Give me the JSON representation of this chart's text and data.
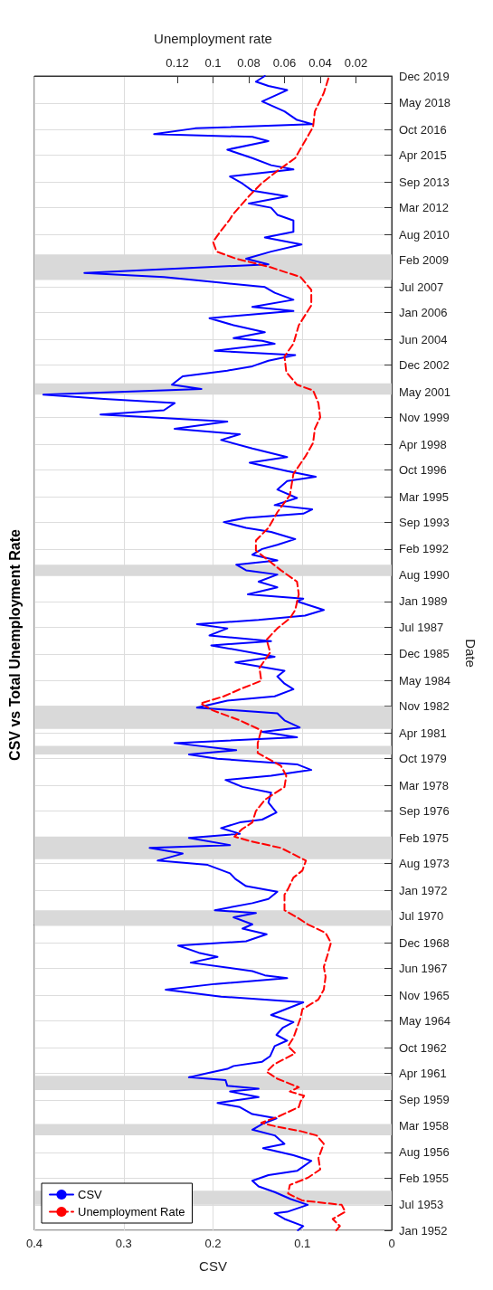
{
  "chart_data": {
    "type": "line",
    "orientation": "horizontal",
    "title": "CSV vs Total Unemployment Rate",
    "ylabel": "Date",
    "xlabel": "CSV",
    "x2label": "Unemployment rate",
    "ylim": [
      "1952-01",
      "2019-12"
    ],
    "yticks": [
      {
        "value": "1952-01",
        "label": "Jan 1952"
      },
      {
        "value": "1953-07",
        "label": "Jul 1953"
      },
      {
        "value": "1955-02",
        "label": "Feb 1955"
      },
      {
        "value": "1956-08",
        "label": "Aug 1956"
      },
      {
        "value": "1958-03",
        "label": "Mar 1958"
      },
      {
        "value": "1959-09",
        "label": "Sep 1959"
      },
      {
        "value": "1961-04",
        "label": "Apr 1961"
      },
      {
        "value": "1962-10",
        "label": "Oct 1962"
      },
      {
        "value": "1964-05",
        "label": "May 1964"
      },
      {
        "value": "1965-11",
        "label": "Nov 1965"
      },
      {
        "value": "1967-06",
        "label": "Jun 1967"
      },
      {
        "value": "1968-12",
        "label": "Dec 1968"
      },
      {
        "value": "1970-07",
        "label": "Jul 1970"
      },
      {
        "value": "1972-01",
        "label": "Jan 1972"
      },
      {
        "value": "1973-08",
        "label": "Aug 1973"
      },
      {
        "value": "1975-02",
        "label": "Feb 1975"
      },
      {
        "value": "1976-09",
        "label": "Sep 1976"
      },
      {
        "value": "1978-03",
        "label": "Mar 1978"
      },
      {
        "value": "1979-10",
        "label": "Oct 1979"
      },
      {
        "value": "1981-04",
        "label": "Apr 1981"
      },
      {
        "value": "1982-11",
        "label": "Nov 1982"
      },
      {
        "value": "1984-05",
        "label": "May 1984"
      },
      {
        "value": "1985-12",
        "label": "Dec 1985"
      },
      {
        "value": "1987-07",
        "label": "Jul 1987"
      },
      {
        "value": "1989-01",
        "label": "Jan 1989"
      },
      {
        "value": "1990-08",
        "label": "Aug 1990"
      },
      {
        "value": "1992-02",
        "label": "Feb 1992"
      },
      {
        "value": "1993-09",
        "label": "Sep 1993"
      },
      {
        "value": "1995-03",
        "label": "Mar 1995"
      },
      {
        "value": "1996-10",
        "label": "Oct 1996"
      },
      {
        "value": "1998-04",
        "label": "Apr 1998"
      },
      {
        "value": "1999-11",
        "label": "Nov 1999"
      },
      {
        "value": "2001-05",
        "label": "May 2001"
      },
      {
        "value": "2002-12",
        "label": "Dec 2002"
      },
      {
        "value": "2004-06",
        "label": "Jun 2004"
      },
      {
        "value": "2006-01",
        "label": "Jan 2006"
      },
      {
        "value": "2007-07",
        "label": "Jul 2007"
      },
      {
        "value": "2009-02",
        "label": "Feb 2009"
      },
      {
        "value": "2010-08",
        "label": "Aug 2010"
      },
      {
        "value": "2012-03",
        "label": "Mar 2012"
      },
      {
        "value": "2013-09",
        "label": "Sep 2013"
      },
      {
        "value": "2015-04",
        "label": "Apr 2015"
      },
      {
        "value": "2016-10",
        "label": "Oct 2016"
      },
      {
        "value": "2018-05",
        "label": "May 2018"
      },
      {
        "value": "2019-12",
        "label": "Dec 2019"
      }
    ],
    "xlim": [
      0.4,
      0
    ],
    "xticks": [
      0.4,
      0.3,
      0.2,
      0.1,
      0
    ],
    "x2lim": [
      0.2,
      0
    ],
    "x2ticks": [
      0.12,
      0.1,
      0.08,
      0.06,
      0.04,
      0.02
    ],
    "grid": true,
    "legend": "bottom left",
    "bands": [
      {
        "axis": "y",
        "from": "1953-07",
        "to": "1954-05",
        "color": "#d9d9d9"
      },
      {
        "axis": "y",
        "from": "1957-08",
        "to": "1958-04",
        "color": "#d9d9d9"
      },
      {
        "axis": "y",
        "from": "1960-04",
        "to": "1961-02",
        "color": "#d9d9d9"
      },
      {
        "axis": "y",
        "from": "1969-12",
        "to": "1970-11",
        "color": "#d9d9d9"
      },
      {
        "axis": "y",
        "from": "1973-11",
        "to": "1975-03",
        "color": "#d9d9d9"
      },
      {
        "axis": "y",
        "from": "1980-01",
        "to": "1980-07",
        "color": "#d9d9d9"
      },
      {
        "axis": "y",
        "from": "1981-07",
        "to": "1982-11",
        "color": "#d9d9d9"
      },
      {
        "axis": "y",
        "from": "1990-07",
        "to": "1991-03",
        "color": "#d9d9d9"
      },
      {
        "axis": "y",
        "from": "2001-03",
        "to": "2001-11",
        "color": "#d9d9d9"
      },
      {
        "axis": "y",
        "from": "2007-12",
        "to": "2009-06",
        "color": "#d9d9d9"
      }
    ],
    "series": [
      {
        "name": "CSV",
        "color": "#0000ff",
        "line_style": "solid",
        "x": [
          "1952-01",
          "1952-04",
          "1952-09",
          "1953-01",
          "1953-02",
          "1953-07",
          "1953-11",
          "1954-04",
          "1954-08",
          "1954-12",
          "1955-04",
          "1955-07",
          "1956-02",
          "1956-06",
          "1956-11",
          "1957-02",
          "1957-08",
          "1957-12",
          "1958-04",
          "1958-08",
          "1958-11",
          "1959-04",
          "1959-07",
          "1959-11",
          "1960-03",
          "1960-05",
          "1960-07",
          "1960-11",
          "1961-01",
          "1961-04",
          "1961-07",
          "1961-09",
          "1961-12",
          "1962-04",
          "1962-11",
          "1963-03",
          "1963-07",
          "1963-12",
          "1964-04",
          "1964-09",
          "1965-01",
          "1965-06",
          "1965-10",
          "1966-03",
          "1966-07",
          "1966-11",
          "1967-01",
          "1967-04",
          "1967-10",
          "1968-02",
          "1968-05",
          "1968-10",
          "1969-01",
          "1969-06",
          "1969-10",
          "1970-01",
          "1970-06",
          "1970-09",
          "1970-11",
          "1971-04",
          "1971-07",
          "1971-12",
          "1972-04",
          "1972-09",
          "1973-01",
          "1973-07",
          "1973-10",
          "1974-03",
          "1974-07",
          "1974-09",
          "1975-02",
          "1975-05",
          "1975-09",
          "1976-01",
          "1976-03",
          "1976-08",
          "1977-03",
          "1977-10",
          "1978-02",
          "1978-07",
          "1978-10",
          "1979-02",
          "1979-06",
          "1979-10",
          "1980-01",
          "1980-04",
          "1980-09",
          "1981-01",
          "1981-05",
          "1981-08",
          "1982-01",
          "1982-06",
          "1982-10",
          "1983-03",
          "1983-06",
          "1983-11",
          "1984-03",
          "1984-08",
          "1984-12",
          "1985-06",
          "1985-10",
          "1986-06",
          "1986-09",
          "1987-01",
          "1987-06",
          "1987-09",
          "1987-12",
          "1988-03",
          "1988-07",
          "1989-01",
          "1989-03",
          "1989-06",
          "1989-11",
          "1990-03",
          "1990-08",
          "1990-11",
          "1991-03",
          "1991-06",
          "1991-10",
          "1992-02",
          "1992-05",
          "1992-09",
          "1993-02",
          "1993-05",
          "1993-09",
          "1993-12",
          "1994-03",
          "1994-06",
          "1994-09",
          "1995-02",
          "1995-08",
          "1996-02",
          "1996-05",
          "1996-09",
          "1997-03",
          "1997-07",
          "1998-01",
          "1998-07",
          "1998-11",
          "1999-03",
          "1999-08",
          "2000-01",
          "2000-04",
          "2000-09",
          "2000-12",
          "2001-03",
          "2001-07",
          "2001-10",
          "2002-04",
          "2002-08",
          "2002-11",
          "2003-03",
          "2003-07",
          "2003-10",
          "2004-03",
          "2004-05",
          "2004-07",
          "2004-11",
          "2005-04",
          "2005-09",
          "2006-02",
          "2006-05",
          "2006-10",
          "2007-03",
          "2007-07",
          "2007-10",
          "2008-02",
          "2008-05",
          "2008-11",
          "2009-03",
          "2009-08",
          "2010-01",
          "2010-06",
          "2010-10",
          "2011-06",
          "2011-10",
          "2012-03",
          "2012-06",
          "2012-11",
          "2013-03",
          "2013-08",
          "2014-01",
          "2014-06",
          "2014-09",
          "2015-02",
          "2015-08",
          "2016-02",
          "2016-05",
          "2016-07",
          "2016-11",
          "2017-02",
          "2017-05",
          "2017-11",
          "2018-06",
          "2018-10",
          "2019-02",
          "2019-05",
          "2019-08",
          "2019-12"
        ],
        "values": [
          0.105,
          0.099,
          0.12,
          0.131,
          0.117,
          0.094,
          0.113,
          0.131,
          0.149,
          0.156,
          0.138,
          0.106,
          0.09,
          0.11,
          0.144,
          0.12,
          0.131,
          0.156,
          0.145,
          0.129,
          0.156,
          0.17,
          0.195,
          0.149,
          0.181,
          0.149,
          0.184,
          0.186,
          0.227,
          0.206,
          0.184,
          0.177,
          0.145,
          0.136,
          0.131,
          0.117,
          0.129,
          0.122,
          0.11,
          0.135,
          0.119,
          0.099,
          0.191,
          0.253,
          0.197,
          0.117,
          0.142,
          0.156,
          0.225,
          0.195,
          0.216,
          0.239,
          0.163,
          0.14,
          0.167,
          0.156,
          0.177,
          0.152,
          0.198,
          0.156,
          0.138,
          0.128,
          0.163,
          0.175,
          0.181,
          0.206,
          0.262,
          0.234,
          0.271,
          0.181,
          0.227,
          0.17,
          0.191,
          0.17,
          0.145,
          0.129,
          0.138,
          0.135,
          0.167,
          0.186,
          0.135,
          0.09,
          0.106,
          0.195,
          0.227,
          0.174,
          0.243,
          0.106,
          0.145,
          0.103,
          0.12,
          0.128,
          0.218,
          0.184,
          0.131,
          0.11,
          0.12,
          0.128,
          0.12,
          0.175,
          0.131,
          0.202,
          0.135,
          0.204,
          0.184,
          0.218,
          0.149,
          0.097,
          0.076,
          0.106,
          0.099,
          0.161,
          0.128,
          0.149,
          0.128,
          0.163,
          0.174,
          0.128,
          0.156,
          0.145,
          0.128,
          0.108,
          0.135,
          0.163,
          0.188,
          0.163,
          0.099,
          0.089,
          0.131,
          0.106,
          0.128,
          0.117,
          0.085,
          0.117,
          0.159,
          0.117,
          0.156,
          0.191,
          0.17,
          0.243,
          0.184,
          0.326,
          0.255,
          0.243,
          0.322,
          0.39,
          0.213,
          0.246,
          0.234,
          0.184,
          0.156,
          0.138,
          0.108,
          0.198,
          0.131,
          0.145,
          0.177,
          0.142,
          0.177,
          0.204,
          0.11,
          0.156,
          0.11,
          0.131,
          0.142,
          0.191,
          0.255,
          0.344,
          0.138,
          0.163,
          0.135,
          0.101,
          0.142,
          0.11,
          0.11,
          0.128,
          0.135,
          0.16,
          0.117,
          0.156,
          0.167,
          0.181,
          0.11,
          0.135,
          0.156,
          0.184,
          0.138,
          0.156,
          0.266,
          0.22,
          0.089,
          0.106,
          0.12,
          0.145,
          0.131,
          0.117,
          0.138,
          0.152,
          0.142
        ]
      },
      {
        "name": "Unemployment Rate",
        "color": "#ff0000",
        "line_style": "dashed",
        "axis": "x2",
        "x": [
          "1952-01",
          "1952-04",
          "1952-09",
          "1953-02",
          "1953-07",
          "1953-10",
          "1954-03",
          "1954-09",
          "1955-02",
          "1955-08",
          "1956-04",
          "1957-02",
          "1957-08",
          "1957-11",
          "1958-02",
          "1958-05",
          "1958-09",
          "1959-04",
          "1959-08",
          "1959-12",
          "1960-03",
          "1960-06",
          "1960-12",
          "1961-05",
          "1961-10",
          "1962-06",
          "1962-11",
          "1963-05",
          "1963-12",
          "1964-07",
          "1965-01",
          "1965-08",
          "1966-03",
          "1966-12",
          "1967-07",
          "1968-03",
          "1968-12",
          "1969-07",
          "1970-01",
          "1970-06",
          "1970-11",
          "1971-05",
          "1971-10",
          "1972-02",
          "1972-10",
          "1973-03",
          "1973-10",
          "1974-07",
          "1974-12",
          "1975-03",
          "1975-08",
          "1976-01",
          "1976-09",
          "1977-05",
          "1978-02",
          "1978-10",
          "1979-05",
          "1980-02",
          "1980-09",
          "1981-06",
          "1982-01",
          "1982-08",
          "1983-01",
          "1983-06",
          "1983-11",
          "1984-05",
          "1985-02",
          "1986-01",
          "1986-10",
          "1987-06",
          "1988-01",
          "1988-07",
          "1989-06",
          "1990-03",
          "1990-11",
          "1991-05",
          "1992-01",
          "1992-08",
          "1993-05",
          "1994-04",
          "1995-04",
          "1996-07",
          "1997-08",
          "1998-05",
          "1999-03",
          "1999-11",
          "2000-09",
          "2001-06",
          "2001-10",
          "2002-07",
          "2003-06",
          "2004-03",
          "2005-04",
          "2006-06",
          "2007-05",
          "2008-02",
          "2008-09",
          "2009-03",
          "2009-08",
          "2010-03",
          "2010-10",
          "2011-06",
          "2011-10",
          "2012-11",
          "2013-08",
          "2014-05",
          "2015-02",
          "2016-01",
          "2016-12",
          "2017-11",
          "2018-12",
          "2019-12"
        ],
        "values": [
          0.031,
          0.029,
          0.033,
          0.026,
          0.028,
          0.05,
          0.058,
          0.057,
          0.047,
          0.04,
          0.041,
          0.038,
          0.042,
          0.051,
          0.064,
          0.073,
          0.064,
          0.052,
          0.051,
          0.049,
          0.057,
          0.052,
          0.064,
          0.07,
          0.066,
          0.054,
          0.058,
          0.055,
          0.053,
          0.051,
          0.05,
          0.041,
          0.038,
          0.037,
          0.038,
          0.036,
          0.034,
          0.037,
          0.047,
          0.053,
          0.06,
          0.06,
          0.06,
          0.058,
          0.055,
          0.05,
          0.048,
          0.062,
          0.08,
          0.088,
          0.084,
          0.078,
          0.076,
          0.071,
          0.06,
          0.059,
          0.062,
          0.075,
          0.075,
          0.073,
          0.085,
          0.1,
          0.107,
          0.094,
          0.085,
          0.073,
          0.074,
          0.068,
          0.07,
          0.064,
          0.057,
          0.054,
          0.052,
          0.053,
          0.062,
          0.068,
          0.076,
          0.076,
          0.069,
          0.064,
          0.057,
          0.055,
          0.048,
          0.044,
          0.043,
          0.04,
          0.041,
          0.044,
          0.053,
          0.059,
          0.06,
          0.055,
          0.052,
          0.045,
          0.045,
          0.051,
          0.068,
          0.087,
          0.098,
          0.1,
          0.096,
          0.091,
          0.089,
          0.08,
          0.073,
          0.064,
          0.054,
          0.049,
          0.044,
          0.043,
          0.038,
          0.035
        ]
      }
    ]
  }
}
